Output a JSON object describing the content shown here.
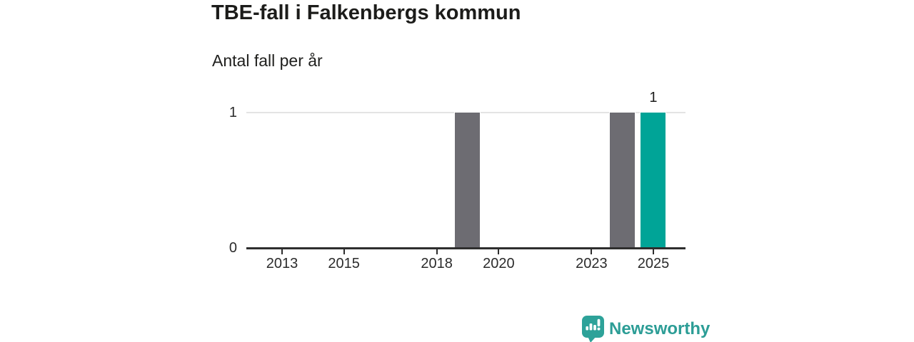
{
  "header": {
    "title": "TBE-fall i Falkenbergs kommun",
    "subtitle": "Antal fall per år"
  },
  "chart_data": {
    "type": "bar",
    "title": "TBE-fall i Falkenbergs kommun",
    "subtitle": "Antal fall per år",
    "ylabel": "Antal fall per år",
    "xlabel": "",
    "categories": [
      2012,
      2013,
      2014,
      2015,
      2016,
      2017,
      2018,
      2019,
      2020,
      2021,
      2022,
      2023,
      2024,
      2025
    ],
    "values": [
      0,
      0,
      0,
      0,
      0,
      0,
      0,
      1,
      0,
      0,
      0,
      0,
      1,
      1
    ],
    "x_tick_labels": [
      2013,
      2015,
      2018,
      2020,
      2023,
      2025
    ],
    "y_tick_labels": [
      0,
      1
    ],
    "ylim": [
      0,
      1
    ],
    "gridlines": [
      1
    ],
    "grid": "horizontal-only",
    "legend": "none",
    "bar_color": "#6d6c72",
    "highlight_color": "#00a497",
    "highlight_category": 2025,
    "data_labels": [
      {
        "category": 2025,
        "text": "1"
      }
    ]
  },
  "branding": {
    "logo_text": "Newsworthy",
    "logo_color": "#2c9d96",
    "icon": "newsworthy-speech-bubble-bar-chart-icon"
  }
}
